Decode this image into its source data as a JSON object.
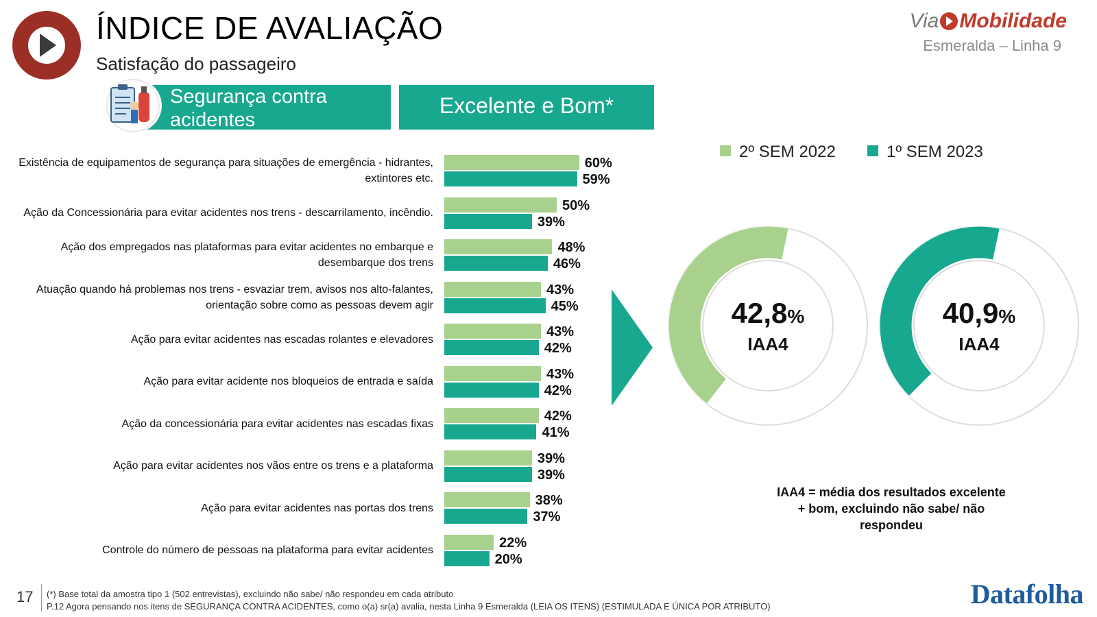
{
  "header": {
    "title": "ÍNDICE DE AVALIAÇÃO",
    "subtitle": "Satisfação do passageiro",
    "brand_prefix": "Via",
    "brand_name": "Mobilidade",
    "brand_line": "Esmeralda – Linha 9"
  },
  "banners": {
    "topic": "Segurança contra acidentes",
    "metric": "Excelente e Bom*"
  },
  "colors": {
    "series_2022": "#a8d18d",
    "series_2023": "#18a88f",
    "accent_red": "#9b2f25",
    "banner": "#18a88f"
  },
  "chart_data": [
    {
      "type": "bar",
      "orientation": "horizontal",
      "categories": [
        "Existência de equipamentos de segurança para situações de emergência - hidrantes, extintores etc.",
        "Ação da Concessionária para evitar acidentes nos trens - descarrilamento, incêndio.",
        "Ação dos empregados nas plataformas para evitar acidentes no embarque e desembarque dos trens",
        "Atuação quando há problemas nos trens - esvaziar trem, avisos nos alto-falantes, orientação sobre como as pessoas devem agir",
        "Ação para evitar acidentes nas escadas rolantes e elevadores",
        "Ação para evitar acidente nos bloqueios de entrada e saída",
        "Ação da concessionária para evitar acidentes nas escadas fixas",
        "Ação para evitar acidentes nos vãos entre os trens e a plataforma",
        "Ação para evitar acidentes nas portas dos trens",
        "Controle do número de pessoas na plataforma para evitar acidentes"
      ],
      "series": [
        {
          "name": "2º SEM 2022",
          "values": [
            60,
            50,
            48,
            43,
            43,
            43,
            42,
            39,
            38,
            22
          ],
          "labels": [
            "60%",
            "50%",
            "48%",
            "43%",
            "43%",
            "43%",
            "42%",
            "39%",
            "38%",
            "22%"
          ]
        },
        {
          "name": "1º SEM 2023",
          "values": [
            59,
            39,
            46,
            45,
            42,
            42,
            41,
            39,
            37,
            20
          ],
          "labels": [
            "59%",
            "39%",
            "46%",
            "45%",
            "42%",
            "42%",
            "41%",
            "39%",
            "37%",
            "20%"
          ]
        }
      ],
      "unit": "%",
      "legend_position": "top-right"
    },
    {
      "type": "pie",
      "variant": "donut",
      "donuts": [
        {
          "series": "2º SEM 2022",
          "value": 42.8,
          "value_label": "42,8",
          "unit_label": "%",
          "caption": "IAA4"
        },
        {
          "series": "1º SEM 2023",
          "value": 40.9,
          "value_label": "40,9",
          "unit_label": "%",
          "caption": "IAA4"
        }
      ]
    }
  ],
  "note": "IAA4 = média dos resultados excelente + bom, excluindo não sabe/ não respondeu",
  "footer": {
    "page": "17",
    "line1": "(*) Base total da amostra tipo 1 (502 entrevistas), excluindo não sabe/ não respondeu em cada atributo",
    "line2": "P.12 Agora pensando nos itens de SEGURANÇA CONTRA ACIDENTES, como o(a) sr(a) avalia, nesta Linha 9 Esmeralda (LEIA OS ITENS) (ESTIMULADA E ÚNICA POR ATRIBUTO)",
    "source": "Datafolha"
  }
}
